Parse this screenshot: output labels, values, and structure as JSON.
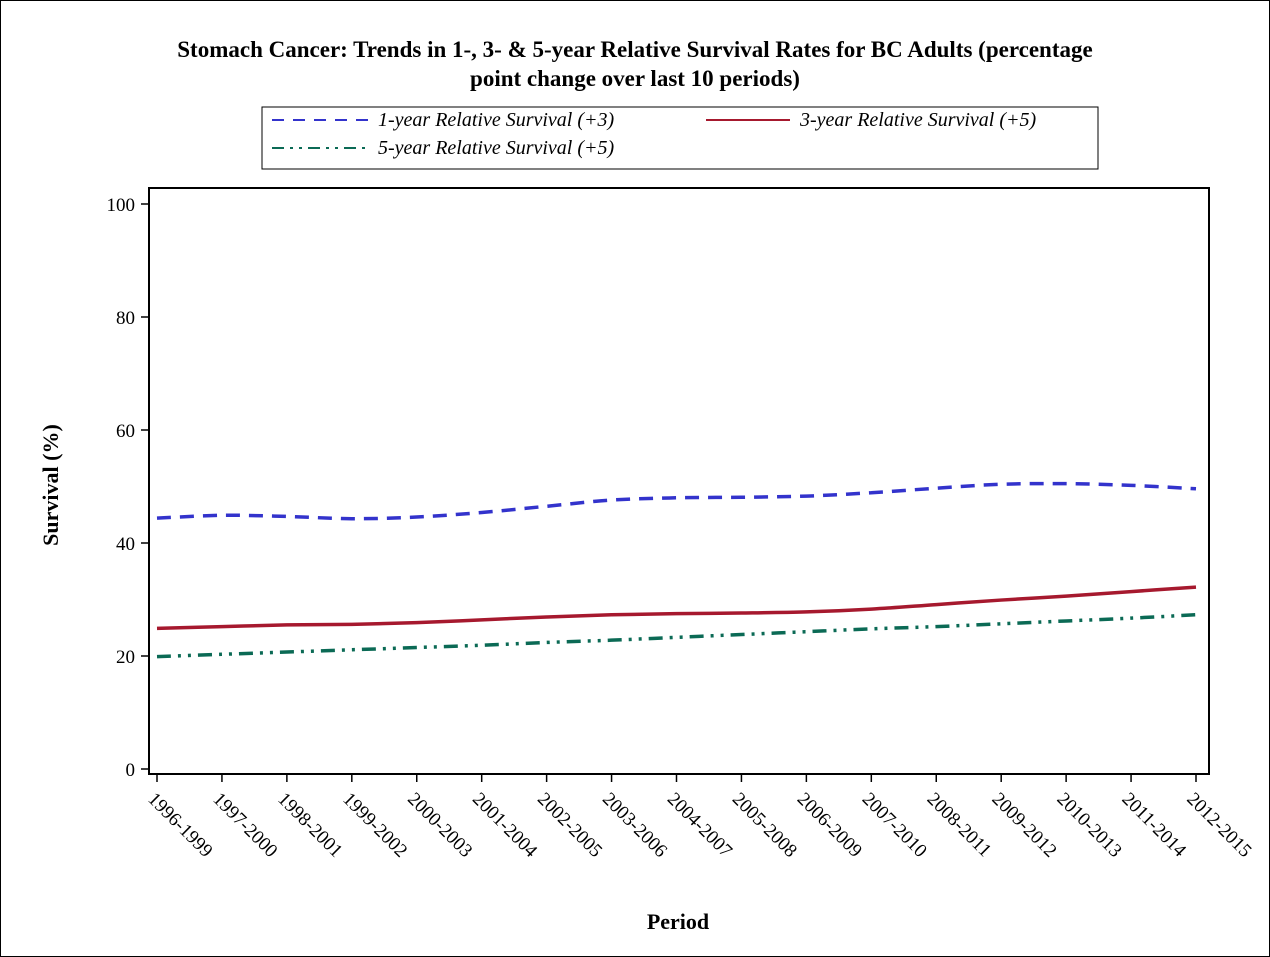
{
  "chart_data": {
    "type": "line",
    "title_line1": "Stomach Cancer: Trends in 1-, 3- & 5-year Relative Survival Rates for BC Adults (percentage",
    "title_line2": "point change over last 10 periods)",
    "xlabel": "Period",
    "ylabel": "Survival (%)",
    "ylim": [
      0,
      100
    ],
    "yticks": [
      0,
      20,
      40,
      60,
      80,
      100
    ],
    "grid": false,
    "legend_position": "top-center",
    "categories": [
      "1996-1999",
      "1997-2000",
      "1998-2001",
      "1999-2002",
      "2000-2003",
      "2001-2004",
      "2002-2005",
      "2003-2006",
      "2004-2007",
      "2005-2008",
      "2006-2009",
      "2007-2010",
      "2008-2011",
      "2009-2012",
      "2010-2013",
      "2011-2014",
      "2012-2015"
    ],
    "series": [
      {
        "name": "1-year Relative Survival (+3)",
        "color": "#3333cc",
        "dash": "dashed",
        "values": [
          44.4,
          44.9,
          44.7,
          44.3,
          44.6,
          45.4,
          46.5,
          47.6,
          48.0,
          48.1,
          48.3,
          48.9,
          49.7,
          50.4,
          50.5,
          50.2,
          49.6
        ]
      },
      {
        "name": "3-year Relative Survival (+5)",
        "color": "#a6192e",
        "dash": "solid",
        "values": [
          24.9,
          25.2,
          25.5,
          25.6,
          25.9,
          26.4,
          26.9,
          27.3,
          27.5,
          27.6,
          27.8,
          28.3,
          29.1,
          29.9,
          30.6,
          31.4,
          32.2
        ]
      },
      {
        "name": "5-year Relative Survival (+5)",
        "color": "#0b6a55",
        "dash": "dashdotdot",
        "values": [
          19.9,
          20.3,
          20.7,
          21.1,
          21.5,
          21.9,
          22.4,
          22.8,
          23.3,
          23.8,
          24.3,
          24.8,
          25.2,
          25.7,
          26.2,
          26.7,
          27.3
        ]
      }
    ]
  }
}
